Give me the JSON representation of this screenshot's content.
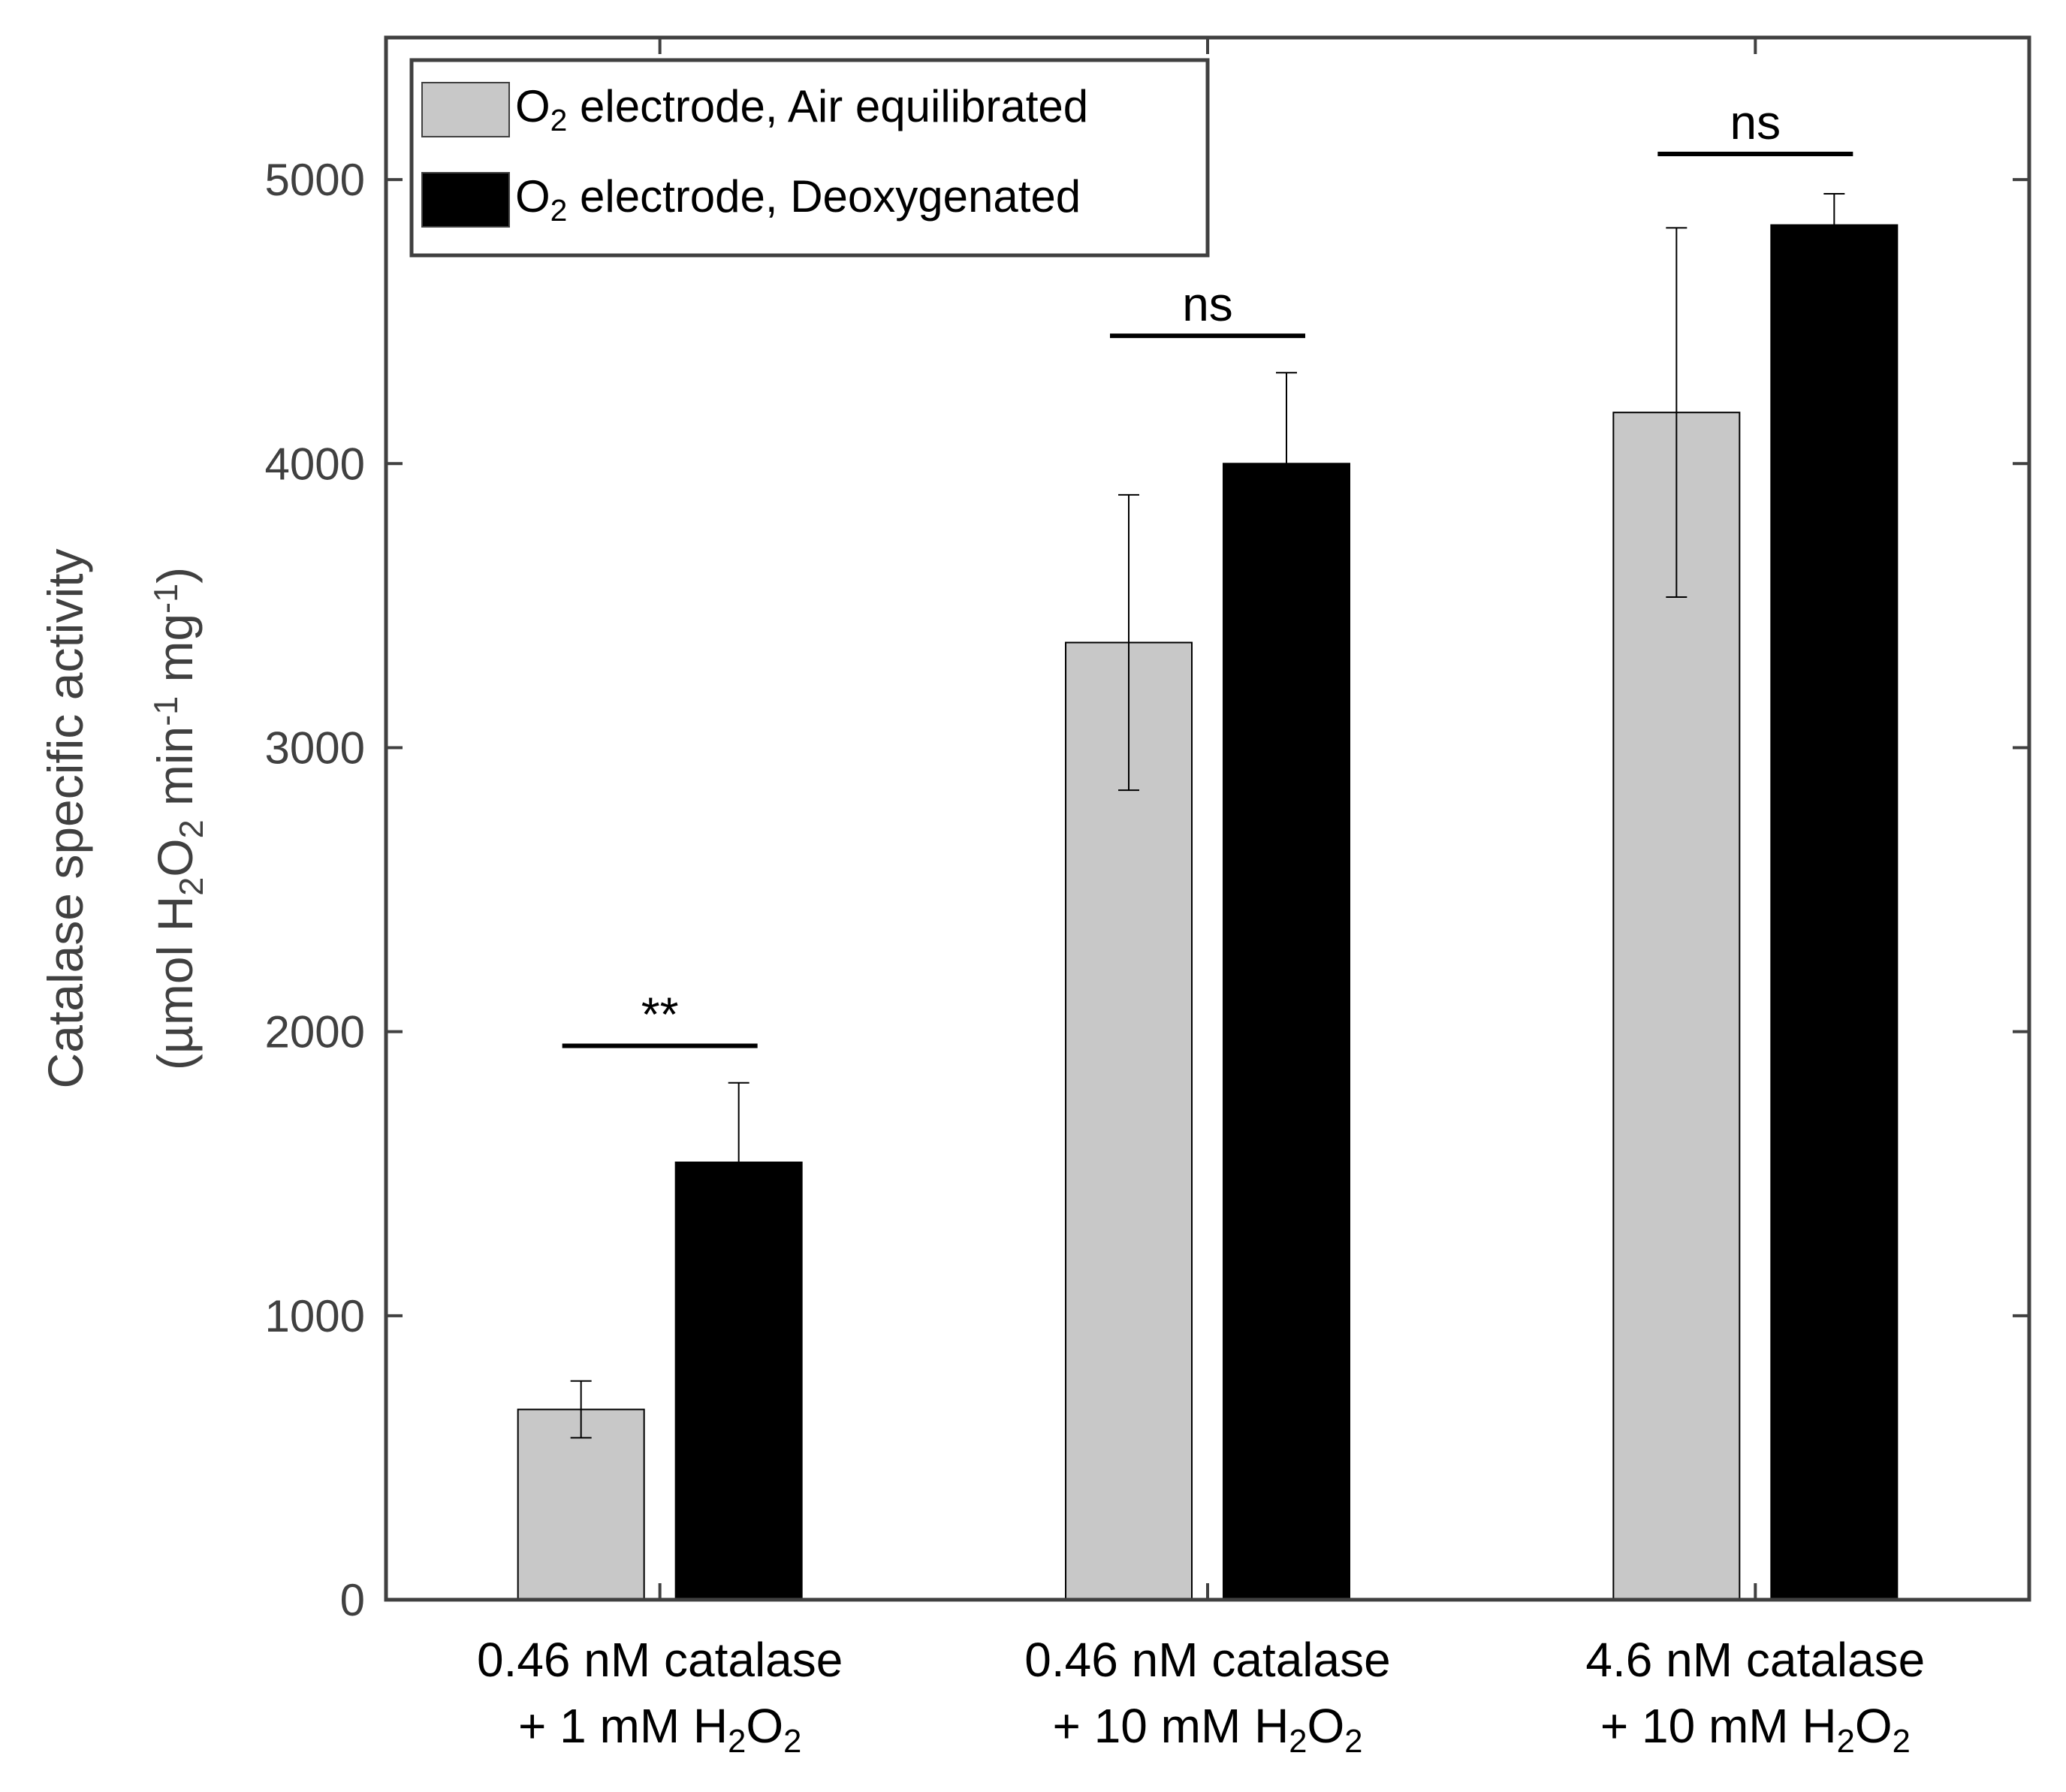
{
  "chart_data": {
    "type": "bar",
    "title": "",
    "xlabel": "",
    "ylabel": {
      "line1": "Catalase specific activity",
      "line2_parts": [
        {
          "text": "(µmol H",
          "style": "normal"
        },
        {
          "text": "2",
          "style": "sub"
        },
        {
          "text": "O",
          "style": "normal"
        },
        {
          "text": "2",
          "style": "sub"
        },
        {
          "text": " min",
          "style": "normal"
        },
        {
          "text": "-1",
          "style": "sup"
        },
        {
          "text": " mg",
          "style": "normal"
        },
        {
          "text": "-1",
          "style": "sup"
        },
        {
          "text": ")",
          "style": "normal"
        }
      ]
    },
    "ylim": [
      0,
      5500
    ],
    "yticks": [
      0,
      1000,
      2000,
      3000,
      4000,
      5000
    ],
    "grid": false,
    "categories": [
      {
        "line1": "0.46 nM catalase",
        "line2_parts": [
          {
            "text": "+ 1 mM H",
            "style": "normal"
          },
          {
            "text": "2",
            "style": "sub"
          },
          {
            "text": "O",
            "style": "normal"
          },
          {
            "text": "2",
            "style": "sub"
          }
        ]
      },
      {
        "line1": "0.46 nM catalase",
        "line2_parts": [
          {
            "text": "+ 10 mM H",
            "style": "normal"
          },
          {
            "text": "2",
            "style": "sub"
          },
          {
            "text": "O",
            "style": "normal"
          },
          {
            "text": "2",
            "style": "sub"
          }
        ]
      },
      {
        "line1": "4.6 nM catalase",
        "line2_parts": [
          {
            "text": "+ 10 mM H",
            "style": "normal"
          },
          {
            "text": "2",
            "style": "sub"
          },
          {
            "text": "O",
            "style": "normal"
          },
          {
            "text": "2",
            "style": "sub"
          }
        ]
      }
    ],
    "series": [
      {
        "name": "O2 electrode, Air equilibrated",
        "legend_parts": [
          {
            "text": "O",
            "style": "normal"
          },
          {
            "text": "2",
            "style": "sub"
          },
          {
            "text": " electrode, Air equilibrated",
            "style": "normal"
          }
        ],
        "color": "#c8c8c8",
        "values": [
          670,
          3370,
          4180
        ],
        "errors": [
          100,
          520,
          650
        ]
      },
      {
        "name": "O2 electrode, Deoxygenated",
        "legend_parts": [
          {
            "text": "O",
            "style": "normal"
          },
          {
            "text": "2",
            "style": "sub"
          },
          {
            "text": " electrode, Deoxygenated",
            "style": "normal"
          }
        ],
        "color": "#000000",
        "values": [
          1540,
          4000,
          4840
        ],
        "errors": [
          280,
          320,
          110
        ]
      }
    ],
    "significance": [
      {
        "category": 0,
        "label": "**",
        "y": 1950
      },
      {
        "category": 1,
        "label": "ns",
        "y": 4450
      },
      {
        "category": 2,
        "label": "ns",
        "y": 5090
      }
    ],
    "legend_position": "top-left"
  }
}
